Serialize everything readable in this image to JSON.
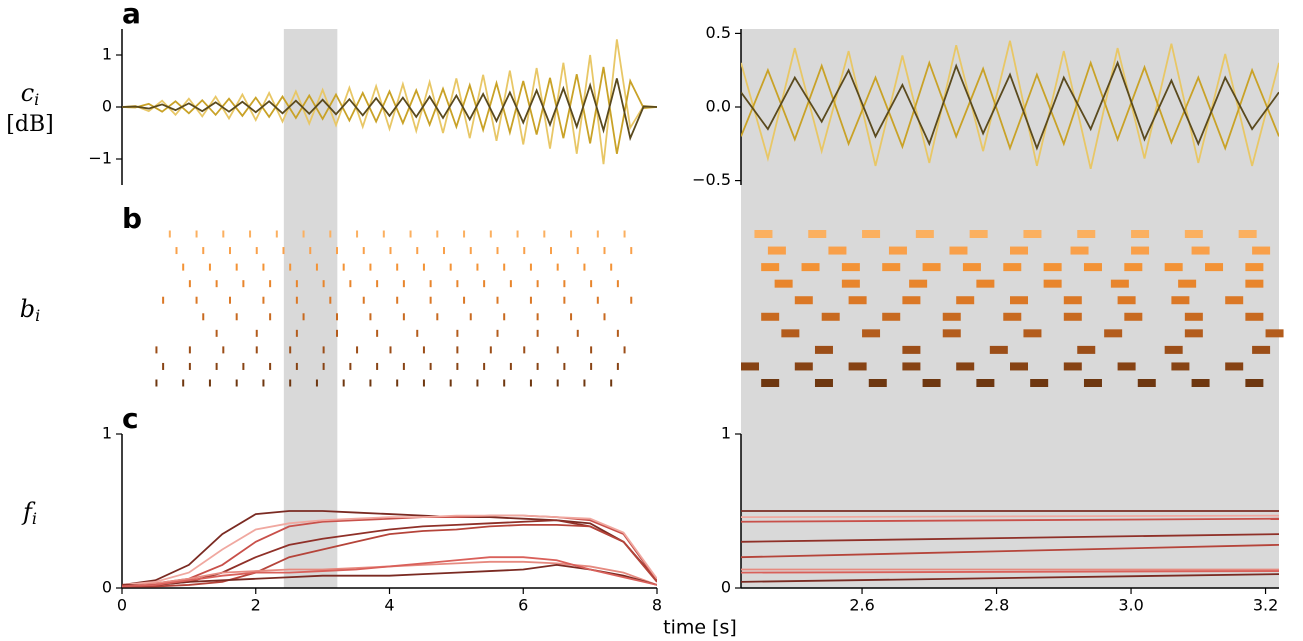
{
  "chart_data": [
    {
      "type": "line",
      "panel": "a",
      "ylabel": "c",
      "ylabel_sub": "i",
      "ylabel_unit": "[dB]",
      "xlim": [
        0,
        8
      ],
      "ylim": [
        -1.5,
        1.5
      ],
      "yticks": [
        1,
        0,
        {
          "value": -1,
          "label": "−1"
        }
      ],
      "x": [
        0,
        0.2,
        0.4,
        0.6,
        0.8,
        1,
        1.2,
        1.4,
        1.6,
        1.8,
        2,
        2.2,
        2.4,
        2.6,
        2.8,
        3,
        3.2,
        3.4,
        3.6,
        3.8,
        4,
        4.2,
        4.4,
        4.6,
        4.8,
        5,
        5.2,
        5.4,
        5.6,
        5.8,
        6,
        6.2,
        6.4,
        6.6,
        6.8,
        7,
        7.2,
        7.4,
        7.6,
        7.8,
        8
      ],
      "series": [
        {
          "color": "#e8c766",
          "values": [
            0,
            0.02,
            -0.08,
            0.12,
            -0.15,
            0.16,
            -0.18,
            0.2,
            -0.22,
            0.24,
            -0.25,
            0.27,
            -0.28,
            0.3,
            -0.32,
            0.33,
            -0.35,
            0.37,
            -0.38,
            0.4,
            -0.42,
            0.44,
            -0.46,
            0.48,
            -0.5,
            0.55,
            -0.6,
            0.62,
            -0.65,
            0.7,
            -0.72,
            0.75,
            -0.8,
            0.85,
            -0.9,
            1.0,
            -1.1,
            1.3,
            -0.4,
            0.02,
            0
          ]
        },
        {
          "color": "#c9a227",
          "values": [
            0,
            -0.01,
            0.06,
            -0.09,
            0.11,
            -0.12,
            0.13,
            -0.15,
            0.16,
            -0.17,
            0.18,
            -0.19,
            0.2,
            -0.21,
            0.22,
            -0.23,
            0.24,
            -0.26,
            0.27,
            -0.28,
            0.3,
            -0.31,
            0.32,
            -0.34,
            0.35,
            -0.38,
            0.42,
            -0.44,
            0.46,
            -0.49,
            0.5,
            -0.53,
            0.56,
            -0.6,
            0.63,
            -0.7,
            0.77,
            -0.9,
            0.5,
            -0.02,
            0
          ]
        },
        {
          "color": "#5a4a1e",
          "values": [
            0,
            0.01,
            -0.03,
            0.05,
            -0.06,
            0.07,
            -0.08,
            0.09,
            -0.09,
            0.1,
            -0.1,
            0.11,
            -0.12,
            0.12,
            -0.13,
            0.14,
            -0.14,
            0.15,
            -0.16,
            0.17,
            -0.17,
            0.18,
            -0.19,
            0.2,
            -0.21,
            0.22,
            -0.24,
            0.25,
            -0.27,
            0.28,
            -0.3,
            0.32,
            -0.34,
            0.36,
            -0.38,
            0.42,
            -0.45,
            0.55,
            -0.6,
            0.01,
            0
          ]
        }
      ]
    },
    {
      "type": "line",
      "xlim": [
        2.42,
        3.22
      ],
      "ylim": [
        -0.53,
        0.53
      ],
      "yticks": [
        {
          "value": 0.5,
          "label": "0.5"
        },
        {
          "value": 0,
          "label": "0.0"
        },
        {
          "value": -0.5,
          "label": "−0.5"
        }
      ],
      "x": [
        2.42,
        2.46,
        2.5,
        2.54,
        2.58,
        2.62,
        2.66,
        2.7,
        2.74,
        2.78,
        2.82,
        2.86,
        2.9,
        2.94,
        2.98,
        3.02,
        3.06,
        3.1,
        3.14,
        3.18,
        3.22
      ],
      "series": [
        {
          "color": "#e8c766",
          "values": [
            0.3,
            -0.35,
            0.4,
            -0.3,
            0.38,
            -0.4,
            0.35,
            -0.38,
            0.42,
            -0.3,
            0.45,
            -0.4,
            0.38,
            -0.42,
            0.4,
            -0.35,
            0.43,
            -0.38,
            0.36,
            -0.4,
            0.3
          ]
        },
        {
          "color": "#c9a227",
          "values": [
            -0.2,
            0.25,
            -0.22,
            0.28,
            -0.25,
            0.2,
            -0.27,
            0.3,
            -0.2,
            0.26,
            -0.28,
            0.22,
            -0.25,
            0.3,
            -0.22,
            0.27,
            -0.24,
            0.2,
            -0.28,
            0.25,
            -0.2
          ]
        },
        {
          "color": "#5a4a1e",
          "values": [
            0.1,
            -0.15,
            0.2,
            -0.1,
            0.25,
            -0.2,
            0.15,
            -0.25,
            0.28,
            -0.18,
            0.22,
            -0.28,
            0.2,
            -0.15,
            0.3,
            -0.22,
            0.18,
            -0.25,
            0.2,
            -0.15,
            0.1
          ]
        }
      ]
    },
    {
      "type": "raster",
      "panel": "b",
      "ylabel": "b",
      "ylabel_sub": "i",
      "xlim": [
        0,
        8
      ],
      "rows": [
        {
          "color": "#fbb060",
          "values": [
            0.7,
            1.1,
            1.5,
            1.9,
            2.3,
            2.7,
            3.1,
            3.5,
            3.9,
            4.3,
            4.7,
            5.1,
            5.5,
            5.9,
            6.3,
            6.7,
            7.1,
            7.5
          ]
        },
        {
          "color": "#f9a04a",
          "values": [
            0.8,
            1.2,
            1.6,
            2,
            2.4,
            2.8,
            3.2,
            3.6,
            4,
            4.4,
            4.8,
            5.2,
            5.6,
            6,
            6.4,
            6.8,
            7.2,
            7.6
          ]
        },
        {
          "color": "#f39336",
          "values": [
            0.9,
            1.3,
            1.7,
            2.1,
            2.5,
            2.9,
            3.3,
            3.7,
            4.1,
            4.5,
            4.9,
            5.3,
            5.7,
            6.1,
            6.5,
            6.9,
            7.3
          ]
        },
        {
          "color": "#e8852c",
          "values": [
            1,
            1.4,
            1.8,
            2.2,
            2.6,
            3,
            3.4,
            3.8,
            4.2,
            4.6,
            5,
            5.4,
            5.8,
            6.2,
            6.6,
            7,
            7.4
          ]
        },
        {
          "color": "#db7826",
          "values": [
            0.6,
            1.1,
            1.6,
            2.1,
            2.6,
            3.1,
            3.6,
            4.1,
            4.6,
            5.1,
            5.6,
            6.1,
            6.6,
            7.1,
            7.6
          ]
        },
        {
          "color": "#c86a20",
          "values": [
            1.2,
            1.7,
            2.2,
            2.7,
            3.2,
            3.7,
            4.2,
            4.7,
            5.2,
            5.7,
            6.2,
            6.7,
            7.2
          ]
        },
        {
          "color": "#b35c1c",
          "values": [
            1.4,
            2,
            2.6,
            3.2,
            3.8,
            4.4,
            5,
            5.6,
            6.2,
            6.8,
            7.4
          ]
        },
        {
          "color": "#9c4e18",
          "values": [
            0.5,
            1,
            1.5,
            2,
            2.5,
            3,
            3.5,
            4,
            4.5,
            5,
            5.5,
            6,
            6.5,
            7,
            7.5
          ]
        },
        {
          "color": "#874314",
          "values": [
            0.6,
            1,
            1.4,
            1.8,
            2.2,
            2.6,
            3,
            3.4,
            3.8,
            4.2,
            4.6,
            5,
            5.4,
            5.8,
            6.2,
            6.6,
            7,
            7.4
          ]
        },
        {
          "color": "#6e3710",
          "values": [
            0.5,
            0.9,
            1.3,
            1.7,
            2.1,
            2.5,
            2.9,
            3.3,
            3.7,
            4.1,
            4.5,
            4.9,
            5.3,
            5.7,
            6.1,
            6.5,
            6.9,
            7.3
          ]
        }
      ]
    },
    {
      "type": "raster",
      "xlim": [
        2.42,
        3.22
      ],
      "rows": [
        {
          "color": "#fbb060",
          "values": [
            2.44,
            2.52,
            2.6,
            2.68,
            2.76,
            2.84,
            2.92,
            3.0,
            3.08,
            3.16
          ]
        },
        {
          "color": "#f9a04a",
          "values": [
            2.46,
            2.55,
            2.64,
            2.73,
            2.82,
            2.91,
            3.0,
            3.09,
            3.18
          ]
        },
        {
          "color": "#f39336",
          "values": [
            2.45,
            2.51,
            2.57,
            2.63,
            2.69,
            2.75,
            2.81,
            2.87,
            2.93,
            2.99,
            3.05,
            3.11,
            3.17
          ]
        },
        {
          "color": "#e8852c",
          "values": [
            2.47,
            2.57,
            2.67,
            2.77,
            2.87,
            2.97,
            3.07,
            3.17
          ]
        },
        {
          "color": "#db7826",
          "values": [
            2.5,
            2.58,
            2.66,
            2.74,
            2.82,
            2.9,
            2.98,
            3.06,
            3.14
          ]
        },
        {
          "color": "#c86a20",
          "values": [
            2.45,
            2.54,
            2.63,
            2.72,
            2.81,
            2.9,
            2.99,
            3.08,
            3.17
          ]
        },
        {
          "color": "#b35c1c",
          "values": [
            2.48,
            2.6,
            2.72,
            2.84,
            2.96,
            3.08,
            3.2
          ]
        },
        {
          "color": "#9c4e18",
          "values": [
            2.53,
            2.66,
            2.79,
            2.92,
            3.05,
            3.18
          ]
        },
        {
          "color": "#874314",
          "values": [
            2.42,
            2.5,
            2.58,
            2.66,
            2.74,
            2.82,
            2.9,
            2.98,
            3.06,
            3.14
          ]
        },
        {
          "color": "#6e3710",
          "values": [
            2.45,
            2.53,
            2.61,
            2.69,
            2.77,
            2.85,
            2.93,
            3.01,
            3.09,
            3.17
          ]
        }
      ]
    },
    {
      "type": "line",
      "panel": "c",
      "ylabel": "f",
      "ylabel_sub": "i",
      "xlabel": "time [s]",
      "xlim": [
        0,
        8
      ],
      "ylim": [
        0,
        1
      ],
      "xticks": [
        0,
        2,
        4,
        6,
        8
      ],
      "yticks": [
        0,
        1
      ],
      "x": [
        0,
        0.5,
        1,
        1.5,
        2,
        2.5,
        3,
        3.5,
        4,
        4.5,
        5,
        5.5,
        6,
        6.5,
        7,
        7.5,
        8
      ],
      "series": [
        {
          "color": "#7a2a22",
          "values": [
            0.02,
            0.05,
            0.15,
            0.35,
            0.48,
            0.5,
            0.5,
            0.49,
            0.48,
            0.47,
            0.46,
            0.46,
            0.45,
            0.44,
            0.42,
            0.3,
            0.05
          ]
        },
        {
          "color": "#c8504a",
          "values": [
            0.02,
            0.03,
            0.06,
            0.15,
            0.3,
            0.4,
            0.43,
            0.44,
            0.45,
            0.46,
            0.46,
            0.47,
            0.47,
            0.46,
            0.44,
            0.35,
            0.05
          ]
        },
        {
          "color": "#f0a8a0",
          "values": [
            0.02,
            0.04,
            0.1,
            0.25,
            0.38,
            0.42,
            0.44,
            0.45,
            0.46,
            0.46,
            0.47,
            0.47,
            0.47,
            0.46,
            0.45,
            0.36,
            0.06
          ]
        },
        {
          "color": "#8f3028",
          "values": [
            0.02,
            0.02,
            0.04,
            0.1,
            0.2,
            0.28,
            0.32,
            0.35,
            0.38,
            0.4,
            0.41,
            0.42,
            0.43,
            0.44,
            0.4,
            0.3,
            0.04
          ]
        },
        {
          "color": "#b5443a",
          "values": [
            0.01,
            0.01,
            0.02,
            0.04,
            0.1,
            0.2,
            0.25,
            0.3,
            0.35,
            0.37,
            0.38,
            0.4,
            0.41,
            0.41,
            0.4,
            0.3,
            0.04
          ]
        },
        {
          "color": "#e68a80",
          "values": [
            0.01,
            0.03,
            0.06,
            0.1,
            0.11,
            0.12,
            0.12,
            0.13,
            0.14,
            0.15,
            0.16,
            0.17,
            0.17,
            0.16,
            0.14,
            0.1,
            0.02
          ]
        },
        {
          "color": "#7a2a22",
          "values": [
            0.01,
            0.02,
            0.04,
            0.05,
            0.06,
            0.07,
            0.08,
            0.08,
            0.08,
            0.09,
            0.1,
            0.11,
            0.12,
            0.15,
            0.12,
            0.08,
            0.02
          ]
        },
        {
          "color": "#d9605a",
          "values": [
            0.01,
            0.02,
            0.05,
            0.08,
            0.1,
            0.1,
            0.11,
            0.12,
            0.14,
            0.16,
            0.18,
            0.2,
            0.2,
            0.18,
            0.12,
            0.07,
            0.02
          ]
        }
      ]
    },
    {
      "type": "line",
      "xlim": [
        2.42,
        3.22
      ],
      "ylim": [
        0,
        1
      ],
      "xticks": [
        2.6,
        2.8,
        {
          "value": 3,
          "label": "3.0"
        },
        3.2
      ],
      "yticks": [
        0,
        1
      ],
      "x": [
        2.42,
        3.22
      ],
      "series": [
        {
          "color": "#7a2a22",
          "values": [
            0.5,
            0.5
          ]
        },
        {
          "color": "#c8504a",
          "values": [
            0.43,
            0.45
          ]
        },
        {
          "color": "#f0a8a0",
          "values": [
            0.46,
            0.47
          ]
        },
        {
          "color": "#8f3028",
          "values": [
            0.3,
            0.35
          ]
        },
        {
          "color": "#b5443a",
          "values": [
            0.2,
            0.28
          ]
        },
        {
          "color": "#e68a80",
          "values": [
            0.12,
            0.12
          ]
        },
        {
          "color": "#7a2a22",
          "values": [
            0.04,
            0.09
          ]
        },
        {
          "color": "#d9605a",
          "values": [
            0.1,
            0.11
          ]
        }
      ]
    }
  ]
}
